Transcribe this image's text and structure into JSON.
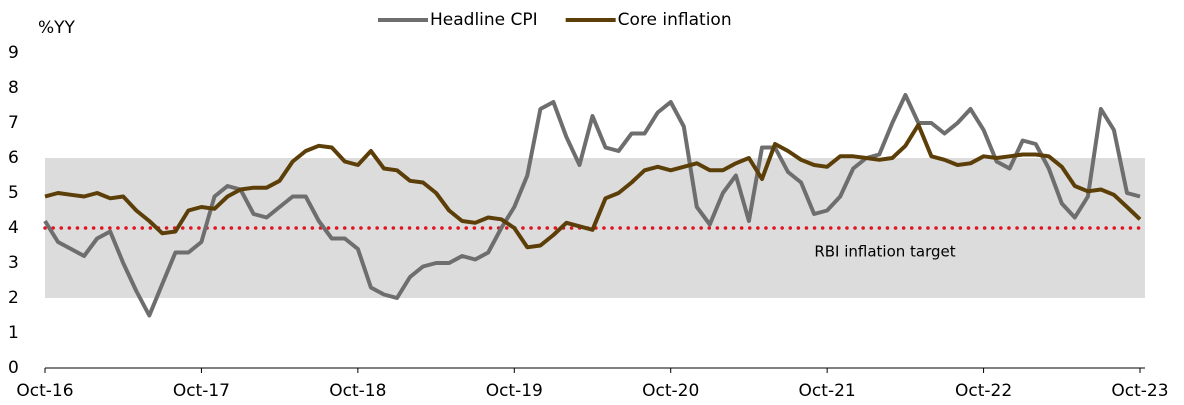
{
  "chart_data": {
    "type": "line",
    "y_label": "%YY",
    "categories": [
      "Oct-16",
      null,
      null,
      null,
      null,
      null,
      null,
      null,
      null,
      null,
      null,
      null,
      "Oct-17",
      null,
      null,
      null,
      null,
      null,
      null,
      null,
      null,
      null,
      null,
      null,
      "Oct-18",
      null,
      null,
      null,
      null,
      null,
      null,
      null,
      null,
      null,
      null,
      null,
      "Oct-19",
      null,
      null,
      null,
      null,
      null,
      null,
      null,
      null,
      null,
      null,
      null,
      "Oct-20",
      null,
      null,
      null,
      null,
      null,
      null,
      null,
      null,
      null,
      null,
      null,
      "Oct-21",
      null,
      null,
      null,
      null,
      null,
      null,
      null,
      null,
      null,
      null,
      null,
      "Oct-22",
      null,
      null,
      null,
      null,
      null,
      null,
      null,
      null,
      null,
      null,
      null,
      "Oct-23"
    ],
    "series": [
      {
        "name": "Headline CPI",
        "color": "#6e6e6e",
        "values": [
          4.2,
          3.6,
          3.4,
          3.2,
          3.7,
          3.9,
          3.0,
          2.2,
          1.5,
          2.4,
          3.3,
          3.3,
          3.6,
          4.9,
          5.2,
          5.1,
          4.4,
          4.3,
          4.6,
          4.9,
          4.9,
          4.2,
          3.7,
          3.7,
          3.4,
          2.3,
          2.1,
          2.0,
          2.6,
          2.9,
          3.0,
          3.0,
          3.2,
          3.1,
          3.3,
          4.0,
          4.6,
          5.5,
          7.4,
          7.6,
          6.6,
          5.8,
          7.2,
          6.3,
          6.2,
          6.7,
          6.7,
          7.3,
          7.6,
          6.9,
          4.6,
          4.1,
          5.0,
          5.5,
          4.2,
          6.3,
          6.3,
          5.6,
          5.3,
          4.4,
          4.5,
          4.9,
          5.7,
          6.0,
          6.1,
          7.0,
          7.8,
          7.0,
          7.0,
          6.7,
          7.0,
          7.4,
          6.8,
          5.9,
          5.7,
          6.5,
          6.4,
          5.7,
          4.7,
          4.3,
          4.9,
          7.4,
          6.8,
          5.0,
          4.9
        ]
      },
      {
        "name": "Core inflation",
        "color": "#5c3f08",
        "values": [
          4.9,
          5.0,
          4.95,
          4.9,
          5.0,
          4.85,
          4.9,
          4.5,
          4.2,
          3.85,
          3.9,
          4.5,
          4.6,
          4.55,
          4.9,
          5.1,
          5.15,
          5.15,
          5.35,
          5.9,
          6.2,
          6.35,
          6.3,
          5.9,
          5.8,
          6.2,
          5.7,
          5.65,
          5.35,
          5.3,
          5.0,
          4.5,
          4.2,
          4.15,
          4.3,
          4.25,
          4.0,
          3.45,
          3.5,
          3.8,
          4.15,
          4.05,
          3.95,
          4.85,
          5.0,
          5.3,
          5.65,
          5.75,
          5.65,
          5.75,
          5.85,
          5.65,
          5.65,
          5.85,
          6.0,
          5.4,
          6.4,
          6.2,
          5.95,
          5.8,
          5.75,
          6.05,
          6.05,
          6.0,
          5.95,
          6.0,
          6.35,
          6.95,
          6.05,
          5.95,
          5.8,
          5.85,
          6.05,
          6.0,
          6.05,
          6.1,
          6.1,
          6.05,
          5.75,
          5.2,
          5.05,
          5.1,
          4.95,
          4.6,
          4.25
        ]
      }
    ],
    "shaded_range": [
      2,
      6
    ],
    "target": {
      "value": 4,
      "label": "RBI inflation target",
      "color": "#e0141e"
    },
    "ylim": [
      0,
      9
    ],
    "yticks": [
      0,
      1,
      2,
      3,
      4,
      5,
      6,
      7,
      8,
      9
    ],
    "legend": "top"
  }
}
